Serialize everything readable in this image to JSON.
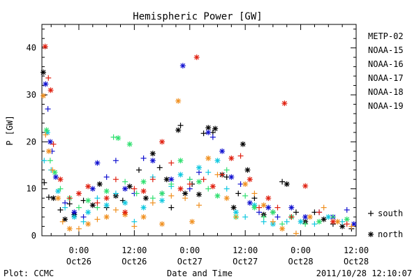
{
  "chart_data": {
    "type": "scatter",
    "title": "Hemispheric Power [GW]",
    "ylabel": "P [GW]",
    "xlabel": "Date and Time",
    "ylim": [
      0,
      45
    ],
    "yticks": [
      0,
      10,
      20,
      30,
      40
    ],
    "xticks": [
      {
        "t": 24,
        "l1": "0:00",
        "l2": "Oct26"
      },
      {
        "t": 36,
        "l1": "12:00",
        "l2": "Oct26"
      },
      {
        "t": 48,
        "l1": "0:00",
        "l2": "Oct27"
      },
      {
        "t": 60,
        "l1": "12:00",
        "l2": "Oct27"
      },
      {
        "t": 72,
        "l1": "0:00",
        "l2": "Oct28"
      },
      {
        "t": 84,
        "l1": "12:00",
        "l2": "Oct28"
      }
    ],
    "xlim_hours_from_oct25_0000": [
      16,
      84
    ],
    "footer_left": "Plot: CCMC",
    "footer_right": "2011/10/28 12:10:07",
    "markers": [
      {
        "symbol": "+",
        "label": "south"
      },
      {
        "symbol": "*",
        "label": "north"
      }
    ],
    "series": [
      {
        "name": "METP-02",
        "color": "#000000",
        "points": [
          [
            16.3,
            34.8,
            "*"
          ],
          [
            16.5,
            11.3,
            "+"
          ],
          [
            17.5,
            8.2,
            "+"
          ],
          [
            18.5,
            8.0,
            "*"
          ],
          [
            20,
            5.5,
            "+"
          ],
          [
            21,
            3.5,
            "*"
          ],
          [
            22,
            6.8,
            "+"
          ],
          [
            23,
            4.5,
            "*"
          ],
          [
            25,
            7.5,
            "+"
          ],
          [
            27,
            6.5,
            "*"
          ],
          [
            28.5,
            11,
            "*"
          ],
          [
            30,
            6,
            "+"
          ],
          [
            32,
            8.5,
            "*"
          ],
          [
            33.5,
            7.5,
            "+"
          ],
          [
            35,
            10.5,
            "*"
          ],
          [
            37,
            14,
            "+"
          ],
          [
            38.5,
            8,
            "*"
          ],
          [
            40,
            17.5,
            "*"
          ],
          [
            41.5,
            14.5,
            "+"
          ],
          [
            43,
            12,
            "*"
          ],
          [
            44,
            6,
            "+"
          ],
          [
            45.5,
            22.5,
            "*"
          ],
          [
            46,
            23.5,
            "+"
          ],
          [
            47,
            9,
            "*"
          ],
          [
            48.5,
            11,
            "+"
          ],
          [
            50,
            8.8,
            "*"
          ],
          [
            51,
            21.8,
            "+"
          ],
          [
            52,
            23,
            "*"
          ],
          [
            53,
            22,
            "+"
          ],
          [
            53.5,
            22.8,
            "*"
          ],
          [
            55,
            13,
            "*"
          ],
          [
            56,
            12.5,
            "+"
          ],
          [
            57.5,
            6,
            "*"
          ],
          [
            58.5,
            9,
            "+"
          ],
          [
            59.5,
            19.5,
            "*"
          ],
          [
            60.5,
            14,
            "*"
          ],
          [
            62,
            8,
            "+"
          ],
          [
            64,
            4.5,
            "*"
          ],
          [
            66,
            5,
            "+"
          ],
          [
            68,
            11.5,
            "+"
          ],
          [
            69,
            11,
            "*"
          ],
          [
            70,
            4,
            "*"
          ],
          [
            71,
            5,
            "+"
          ],
          [
            73,
            3,
            "*"
          ],
          [
            75,
            5,
            "+"
          ],
          [
            77,
            3.5,
            "*"
          ],
          [
            79,
            2.5,
            "+"
          ],
          [
            81,
            2,
            "*"
          ],
          [
            83,
            1.5,
            "+"
          ]
        ]
      },
      {
        "name": "NOAA-15",
        "color": "#1010d0",
        "points": [
          [
            16.8,
            32.3,
            "*"
          ],
          [
            17.3,
            27,
            "+"
          ],
          [
            17.8,
            20,
            "*"
          ],
          [
            18.2,
            18,
            "+"
          ],
          [
            19,
            12.5,
            "*"
          ],
          [
            21,
            7,
            "+"
          ],
          [
            23,
            5,
            "*"
          ],
          [
            25,
            4,
            "+"
          ],
          [
            27,
            10,
            "*"
          ],
          [
            28,
            15.5,
            "*"
          ],
          [
            30,
            12.5,
            "+"
          ],
          [
            32,
            16,
            "+"
          ],
          [
            34,
            10,
            "*"
          ],
          [
            36,
            9,
            "+"
          ],
          [
            38,
            16.5,
            "+"
          ],
          [
            40,
            16,
            "*"
          ],
          [
            42,
            9,
            "+"
          ],
          [
            44,
            12,
            "*"
          ],
          [
            46.5,
            36.2,
            "*"
          ],
          [
            48,
            10,
            "+"
          ],
          [
            50,
            13.5,
            "+"
          ],
          [
            52,
            22,
            "*"
          ],
          [
            53,
            21,
            "+"
          ],
          [
            55,
            18,
            "*"
          ],
          [
            57,
            12.5,
            "*"
          ],
          [
            59,
            11,
            "+"
          ],
          [
            61,
            7,
            "*"
          ],
          [
            63,
            5,
            "+"
          ],
          [
            65,
            6,
            "*"
          ],
          [
            67,
            4,
            "+"
          ],
          [
            70,
            6,
            "*"
          ],
          [
            73,
            4,
            "*"
          ],
          [
            76,
            5,
            "+"
          ],
          [
            79,
            4,
            "*"
          ],
          [
            82,
            5.5,
            "+"
          ],
          [
            83.5,
            2.5,
            "*"
          ]
        ]
      },
      {
        "name": "NOAA-16",
        "color": "#10c8e0",
        "points": [
          [
            16.5,
            16,
            "+"
          ],
          [
            17.2,
            22,
            "*"
          ],
          [
            18,
            14,
            "+"
          ],
          [
            19.5,
            9.5,
            "*"
          ],
          [
            21,
            6,
            "+"
          ],
          [
            23,
            4,
            "*"
          ],
          [
            25,
            3,
            "+"
          ],
          [
            26,
            5,
            "*"
          ],
          [
            28,
            8,
            "+"
          ],
          [
            30,
            6.5,
            "*"
          ],
          [
            32,
            9,
            "+"
          ],
          [
            34,
            7,
            "*"
          ],
          [
            36,
            3,
            "+"
          ],
          [
            38,
            6,
            "*"
          ],
          [
            40,
            12.5,
            "+"
          ],
          [
            42,
            7.5,
            "*"
          ],
          [
            44,
            10.5,
            "+"
          ],
          [
            46,
            13,
            "*"
          ],
          [
            48,
            12,
            "+"
          ],
          [
            50,
            14.5,
            "*"
          ],
          [
            52,
            13.5,
            "+"
          ],
          [
            54,
            16,
            "*"
          ],
          [
            56,
            10,
            "+"
          ],
          [
            58,
            5,
            "*"
          ],
          [
            60,
            4,
            "+"
          ],
          [
            62,
            6.5,
            "*"
          ],
          [
            64,
            3,
            "+"
          ],
          [
            66,
            2.5,
            "*"
          ],
          [
            69,
            3,
            "+"
          ],
          [
            72,
            3,
            "*"
          ],
          [
            75,
            2.5,
            "+"
          ],
          [
            78,
            4,
            "*"
          ],
          [
            81,
            3,
            "+"
          ]
        ]
      },
      {
        "name": "NOAA-17",
        "color": "#30e070",
        "points": [
          [
            17,
            22.5,
            "*"
          ],
          [
            17.8,
            16,
            "+"
          ],
          [
            18.8,
            13.5,
            "*"
          ],
          [
            20,
            10,
            "+"
          ],
          [
            22,
            8,
            "*"
          ],
          [
            24,
            6,
            "+"
          ],
          [
            26,
            7.5,
            "*"
          ],
          [
            28,
            6,
            "+"
          ],
          [
            30,
            9.5,
            "*"
          ],
          [
            31.5,
            21,
            "+"
          ],
          [
            32.5,
            20.8,
            "*"
          ],
          [
            34,
            11.5,
            "+"
          ],
          [
            35,
            19.5,
            "*"
          ],
          [
            36.5,
            9,
            "+"
          ],
          [
            38,
            11.5,
            "*"
          ],
          [
            40,
            8,
            "+"
          ],
          [
            42,
            9,
            "*"
          ],
          [
            44,
            11,
            "+"
          ],
          [
            46,
            16,
            "*"
          ],
          [
            48,
            12,
            "+"
          ],
          [
            50,
            11.5,
            "*"
          ],
          [
            52,
            10,
            "+"
          ],
          [
            54,
            8.5,
            "*"
          ],
          [
            56,
            14,
            "+"
          ],
          [
            58,
            4,
            "*"
          ],
          [
            60,
            8.5,
            "+"
          ],
          [
            62,
            6,
            "*"
          ],
          [
            64,
            4,
            "+"
          ],
          [
            66,
            5,
            "*"
          ],
          [
            68,
            2.5,
            "+"
          ],
          [
            70,
            4,
            "*"
          ],
          [
            73,
            2.5,
            "+"
          ],
          [
            76,
            3,
            "*"
          ],
          [
            79,
            4,
            "+"
          ],
          [
            82,
            3.5,
            "*"
          ]
        ]
      },
      {
        "name": "NOAA-18",
        "color": "#f09020",
        "points": [
          [
            16.3,
            29.8,
            "*"
          ],
          [
            16.8,
            21.5,
            "+"
          ],
          [
            17.5,
            18,
            "*"
          ],
          [
            18.3,
            14,
            "+"
          ],
          [
            19.5,
            8,
            "*"
          ],
          [
            20.5,
            3,
            "+"
          ],
          [
            22,
            1.5,
            "*"
          ],
          [
            24,
            1.5,
            "+"
          ],
          [
            26,
            2.5,
            "*"
          ],
          [
            28,
            3.5,
            "+"
          ],
          [
            30,
            4,
            "*"
          ],
          [
            32,
            5.5,
            "+"
          ],
          [
            34,
            4.5,
            "*"
          ],
          [
            36,
            2,
            "+"
          ],
          [
            38,
            4,
            "*"
          ],
          [
            40,
            7,
            "+"
          ],
          [
            42,
            2.5,
            "*"
          ],
          [
            44,
            8.5,
            "+"
          ],
          [
            45.5,
            28.7,
            "*"
          ],
          [
            47,
            8,
            "+"
          ],
          [
            48.5,
            3,
            "*"
          ],
          [
            50,
            6.5,
            "+"
          ],
          [
            52,
            16.5,
            "*"
          ],
          [
            54,
            13,
            "+"
          ],
          [
            56,
            8,
            "*"
          ],
          [
            58,
            4,
            "+"
          ],
          [
            60,
            11,
            "*"
          ],
          [
            62,
            9,
            "+"
          ],
          [
            64,
            6.5,
            "*"
          ],
          [
            66,
            3,
            "+"
          ],
          [
            68,
            1.5,
            "*"
          ],
          [
            71,
            0.5,
            "+"
          ],
          [
            74,
            4,
            "*"
          ],
          [
            77,
            6,
            "+"
          ],
          [
            80,
            3,
            "*"
          ],
          [
            83,
            2,
            "+"
          ]
        ]
      },
      {
        "name": "NOAA-19",
        "color": "#e02010",
        "points": [
          [
            16.7,
            40.3,
            "*"
          ],
          [
            17.4,
            33.6,
            "+"
          ],
          [
            17.9,
            31,
            "*"
          ],
          [
            18.5,
            19.5,
            "+"
          ],
          [
            20,
            12,
            "*"
          ],
          [
            22,
            8,
            "+"
          ],
          [
            24,
            9,
            "*"
          ],
          [
            26,
            10.5,
            "*"
          ],
          [
            28,
            7,
            "+"
          ],
          [
            30,
            8,
            "*"
          ],
          [
            32,
            12,
            "+"
          ],
          [
            34,
            5,
            "*"
          ],
          [
            36,
            10,
            "+"
          ],
          [
            38,
            9.5,
            "*"
          ],
          [
            40,
            12,
            "+"
          ],
          [
            42,
            20,
            "*"
          ],
          [
            44,
            15.5,
            "+"
          ],
          [
            46,
            10,
            "*"
          ],
          [
            48,
            11,
            "+"
          ],
          [
            49.5,
            38,
            "*"
          ],
          [
            51,
            12,
            "+"
          ],
          [
            53,
            10.5,
            "*"
          ],
          [
            55,
            13,
            "+"
          ],
          [
            57,
            16.5,
            "*"
          ],
          [
            59,
            17,
            "+"
          ],
          [
            61,
            12,
            "*"
          ],
          [
            63,
            6,
            "+"
          ],
          [
            65,
            8,
            "*"
          ],
          [
            67,
            6,
            "+"
          ],
          [
            68.5,
            28.2,
            "*"
          ],
          [
            70,
            4,
            "+"
          ],
          [
            73,
            10.6,
            "*"
          ],
          [
            76,
            5,
            "+"
          ],
          [
            79,
            3,
            "*"
          ],
          [
            82,
            2.5,
            "+"
          ]
        ]
      }
    ]
  }
}
